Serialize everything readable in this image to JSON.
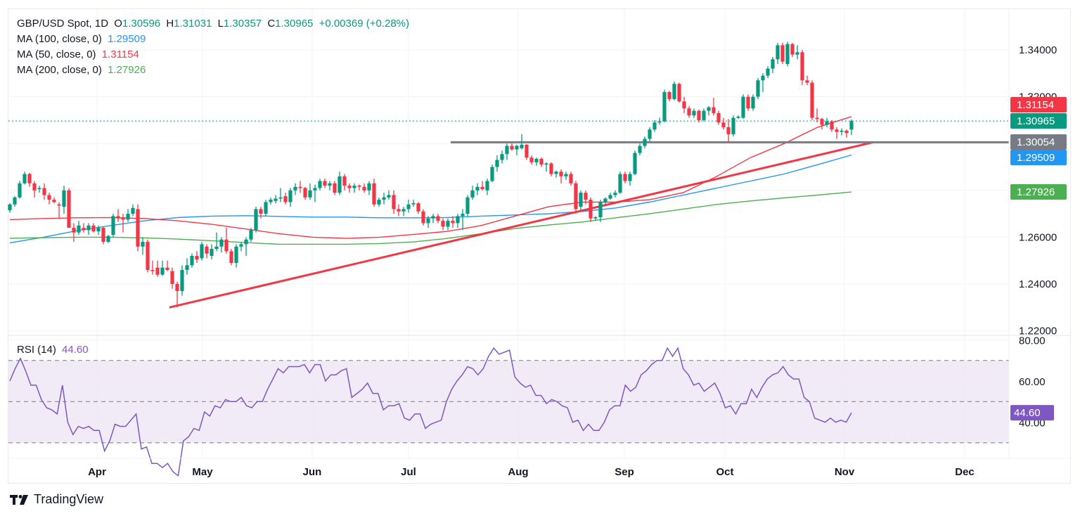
{
  "header": {
    "symbol": "GBP/USD Spot, 1D",
    "open_label": "O",
    "open": "1.30596",
    "high_label": "H",
    "high": "1.31031",
    "low_label": "L",
    "low": "1.30357",
    "close_label": "C",
    "close": "1.30965",
    "change": "+0.00369 (+0.28%)"
  },
  "indicators": [
    {
      "label": "MA (100, close, 0)",
      "value": "1.29509",
      "color": "#2196f3"
    },
    {
      "label": "MA (50, close, 0)",
      "value": "1.31154",
      "color": "#f23645"
    },
    {
      "label": "MA (200, close, 0)",
      "value": "1.27926",
      "color": "#4caf50"
    }
  ],
  "rsi": {
    "label": "RSI (14)",
    "value": "44.60",
    "color": "#7e57c2"
  },
  "price_tags": [
    {
      "name": "ma50-tag",
      "value": "1.31154",
      "color": "#f23645"
    },
    {
      "name": "close-tag",
      "value": "1.30965",
      "color": "#089981"
    },
    {
      "name": "support-tag",
      "value": "1.30054",
      "color": "#787b86"
    },
    {
      "name": "ma100-tag",
      "value": "1.29509",
      "color": "#2196f3"
    },
    {
      "name": "ma200-tag",
      "value": "1.27926",
      "color": "#4caf50"
    }
  ],
  "rsi_tag": {
    "value": "44.60",
    "color": "#7e57c2"
  },
  "brand": "TradingView",
  "colors": {
    "up": "#089981",
    "down": "#f23645",
    "trendline": "#f23645",
    "support": "#787b86",
    "rsi_band": "#ede7f6"
  },
  "chart_data": {
    "type": "candlestick",
    "title": "GBP/USD Spot, 1D",
    "price_axis": {
      "ticks": [
        1.22,
        1.24,
        1.26,
        1.32,
        1.34
      ],
      "tick_labels": [
        "1.22000",
        "1.24000",
        "1.26000",
        "1.32000",
        "1.34000"
      ],
      "range": [
        1.218,
        1.348
      ]
    },
    "time_axis": {
      "labels": [
        "Apr",
        "May",
        "Jun",
        "Jul",
        "Aug",
        "Sep",
        "Oct",
        "Nov",
        "Dec"
      ]
    },
    "candles_ohlc": [
      [
        1.2715,
        1.2745,
        1.2705,
        1.274
      ],
      [
        1.274,
        1.2775,
        1.273,
        1.277
      ],
      [
        1.277,
        1.284,
        1.2765,
        1.283
      ],
      [
        1.283,
        1.288,
        1.2825,
        1.287
      ],
      [
        1.287,
        1.2875,
        1.2815,
        1.283
      ],
      [
        1.283,
        1.284,
        1.277,
        1.28
      ],
      [
        1.2805,
        1.282,
        1.279,
        1.281
      ],
      [
        1.281,
        1.283,
        1.276,
        1.278
      ],
      [
        1.278,
        1.279,
        1.274,
        1.276
      ],
      [
        1.276,
        1.277,
        1.2745,
        1.275
      ],
      [
        1.274,
        1.275,
        1.268,
        1.2735
      ],
      [
        1.273,
        1.282,
        1.27,
        1.28
      ],
      [
        1.28,
        1.281,
        1.266,
        1.264
      ],
      [
        1.264,
        1.266,
        1.258,
        1.262
      ],
      [
        1.262,
        1.267,
        1.261,
        1.265
      ],
      [
        1.264,
        1.266,
        1.262,
        1.263
      ],
      [
        1.263,
        1.266,
        1.261,
        1.265
      ],
      [
        1.265,
        1.266,
        1.262,
        1.2625
      ],
      [
        1.2625,
        1.265,
        1.261,
        1.264
      ],
      [
        1.264,
        1.2645,
        1.257,
        1.258
      ],
      [
        1.258,
        1.261,
        1.2575,
        1.2605
      ],
      [
        1.261,
        1.27,
        1.26,
        1.269
      ],
      [
        1.269,
        1.272,
        1.2665,
        1.268
      ],
      [
        1.2685,
        1.27,
        1.262,
        1.2675
      ],
      [
        1.2675,
        1.272,
        1.2665,
        1.27
      ],
      [
        1.27,
        1.274,
        1.269,
        1.2725
      ],
      [
        1.272,
        1.274,
        1.254,
        1.256
      ],
      [
        1.256,
        1.26,
        1.2525,
        1.258
      ],
      [
        1.258,
        1.259,
        1.245,
        1.246
      ],
      [
        1.246,
        1.25,
        1.244,
        1.2455
      ],
      [
        1.247,
        1.25,
        1.243,
        1.244
      ],
      [
        1.244,
        1.25,
        1.2435,
        1.247
      ],
      [
        1.247,
        1.25,
        1.2455,
        1.246
      ],
      [
        1.2455,
        1.247,
        1.238,
        1.24
      ],
      [
        1.24,
        1.241,
        1.23,
        1.237
      ],
      [
        1.237,
        1.248,
        1.235,
        1.246
      ],
      [
        1.246,
        1.251,
        1.244,
        1.248
      ],
      [
        1.248,
        1.253,
        1.247,
        1.252
      ],
      [
        1.252,
        1.254,
        1.249,
        1.2505
      ],
      [
        1.251,
        1.258,
        1.25,
        1.257
      ],
      [
        1.256,
        1.257,
        1.251,
        1.253
      ],
      [
        1.252,
        1.257,
        1.2505,
        1.255
      ],
      [
        1.255,
        1.262,
        1.254,
        1.256
      ],
      [
        1.256,
        1.26,
        1.2535,
        1.259
      ],
      [
        1.259,
        1.264,
        1.253,
        1.254
      ],
      [
        1.254,
        1.255,
        1.248,
        1.249
      ],
      [
        1.249,
        1.257,
        1.247,
        1.256
      ],
      [
        1.256,
        1.258,
        1.254,
        1.257
      ],
      [
        1.257,
        1.26,
        1.252,
        1.259
      ],
      [
        1.259,
        1.264,
        1.258,
        1.263
      ],
      [
        1.263,
        1.273,
        1.262,
        1.272
      ],
      [
        1.272,
        1.273,
        1.268,
        1.27
      ],
      [
        1.27,
        1.276,
        1.269,
        1.275
      ],
      [
        1.275,
        1.277,
        1.274,
        1.276
      ],
      [
        1.2755,
        1.278,
        1.2745,
        1.2765
      ],
      [
        1.2765,
        1.281,
        1.275,
        1.277
      ],
      [
        1.2775,
        1.279,
        1.274,
        1.275
      ],
      [
        1.275,
        1.281,
        1.273,
        1.28
      ],
      [
        1.28,
        1.283,
        1.278,
        1.2815
      ],
      [
        1.2815,
        1.284,
        1.279,
        1.281
      ],
      [
        1.281,
        1.2815,
        1.276,
        1.277
      ],
      [
        1.277,
        1.283,
        1.276,
        1.28
      ],
      [
        1.28,
        1.2825,
        1.275,
        1.281
      ],
      [
        1.281,
        1.285,
        1.28,
        1.284
      ],
      [
        1.284,
        1.285,
        1.281,
        1.282
      ],
      [
        1.282,
        1.284,
        1.28,
        1.283
      ],
      [
        1.283,
        1.284,
        1.278,
        1.279
      ],
      [
        1.279,
        1.288,
        1.278,
        1.286
      ],
      [
        1.286,
        1.287,
        1.28,
        1.282
      ],
      [
        1.282,
        1.283,
        1.279,
        1.281
      ],
      [
        1.281,
        1.283,
        1.279,
        1.282
      ],
      [
        1.282,
        1.2825,
        1.28,
        1.2815
      ],
      [
        1.2815,
        1.283,
        1.279,
        1.28
      ],
      [
        1.28,
        1.284,
        1.278,
        1.283
      ],
      [
        1.283,
        1.285,
        1.273,
        1.274
      ],
      [
        1.274,
        1.277,
        1.273,
        1.276
      ],
      [
        1.276,
        1.279,
        1.274,
        1.277
      ],
      [
        1.277,
        1.28,
        1.276,
        1.278
      ],
      [
        1.278,
        1.28,
        1.27,
        1.272
      ],
      [
        1.272,
        1.274,
        1.269,
        1.271
      ],
      [
        1.271,
        1.273,
        1.269,
        1.272
      ],
      [
        1.272,
        1.276,
        1.2705,
        1.274
      ],
      [
        1.274,
        1.276,
        1.273,
        1.2745
      ],
      [
        1.2745,
        1.275,
        1.27,
        1.271
      ],
      [
        1.271,
        1.272,
        1.265,
        1.266
      ],
      [
        1.266,
        1.269,
        1.264,
        1.268
      ],
      [
        1.268,
        1.27,
        1.266,
        1.269
      ],
      [
        1.269,
        1.27,
        1.266,
        1.267
      ],
      [
        1.267,
        1.268,
        1.263,
        1.2645
      ],
      [
        1.2645,
        1.268,
        1.263,
        1.267
      ],
      [
        1.267,
        1.269,
        1.264,
        1.266
      ],
      [
        1.266,
        1.27,
        1.264,
        1.269
      ],
      [
        1.269,
        1.272,
        1.263,
        1.27
      ],
      [
        1.27,
        1.278,
        1.269,
        1.277
      ],
      [
        1.277,
        1.282,
        1.276,
        1.28
      ],
      [
        1.28,
        1.283,
        1.278,
        1.2815
      ],
      [
        1.2815,
        1.284,
        1.28,
        1.2805
      ],
      [
        1.28,
        1.285,
        1.278,
        1.284
      ],
      [
        1.284,
        1.291,
        1.2835,
        1.29
      ],
      [
        1.29,
        1.295,
        1.288,
        1.293
      ],
      [
        1.293,
        1.297,
        1.2915,
        1.2955
      ],
      [
        1.2955,
        1.3,
        1.293,
        1.299
      ],
      [
        1.299,
        1.3,
        1.297,
        1.2975
      ],
      [
        1.2975,
        1.2995,
        1.295,
        1.299
      ],
      [
        1.298,
        1.304,
        1.2975,
        1.2995
      ],
      [
        1.2995,
        1.2998,
        1.293,
        1.294
      ],
      [
        1.294,
        1.295,
        1.291,
        1.292
      ],
      [
        1.292,
        1.294,
        1.2905,
        1.2935
      ],
      [
        1.2935,
        1.294,
        1.29,
        1.291
      ],
      [
        1.291,
        1.292,
        1.288,
        1.2915
      ],
      [
        1.2915,
        1.292,
        1.286,
        1.287
      ],
      [
        1.287,
        1.2885,
        1.2855,
        1.288
      ],
      [
        1.288,
        1.289,
        1.283,
        1.286
      ],
      [
        1.286,
        1.288,
        1.2845,
        1.287
      ],
      [
        1.287,
        1.288,
        1.282,
        1.283
      ],
      [
        1.283,
        1.284,
        1.27,
        1.272
      ],
      [
        1.273,
        1.28,
        1.2715,
        1.279
      ],
      [
        1.279,
        1.28,
        1.274,
        1.276
      ],
      [
        1.276,
        1.277,
        1.2665,
        1.268
      ],
      [
        1.268,
        1.269,
        1.267,
        1.2685
      ],
      [
        1.2685,
        1.276,
        1.2665,
        1.275
      ],
      [
        1.275,
        1.277,
        1.274,
        1.2765
      ],
      [
        1.2765,
        1.279,
        1.276,
        1.278
      ],
      [
        1.278,
        1.28,
        1.277,
        1.279
      ],
      [
        1.279,
        1.288,
        1.2785,
        1.287
      ],
      [
        1.287,
        1.288,
        1.283,
        1.284
      ],
      [
        1.284,
        1.288,
        1.282,
        1.287
      ],
      [
        1.287,
        1.297,
        1.2865,
        1.296
      ],
      [
        1.296,
        1.3,
        1.295,
        1.299
      ],
      [
        1.299,
        1.303,
        1.298,
        1.302
      ],
      [
        1.302,
        1.307,
        1.301,
        1.306
      ],
      [
        1.306,
        1.31,
        1.305,
        1.309
      ],
      [
        1.309,
        1.311,
        1.308,
        1.3095
      ],
      [
        1.3095,
        1.323,
        1.309,
        1.322
      ],
      [
        1.322,
        1.3225,
        1.318,
        1.319
      ],
      [
        1.319,
        1.3265,
        1.3185,
        1.3255
      ],
      [
        1.3255,
        1.326,
        1.3175,
        1.318
      ],
      [
        1.318,
        1.32,
        1.313,
        1.315
      ],
      [
        1.315,
        1.316,
        1.311,
        1.312
      ],
      [
        1.312,
        1.315,
        1.311,
        1.314
      ],
      [
        1.314,
        1.3145,
        1.309,
        1.31
      ],
      [
        1.31,
        1.315,
        1.3095,
        1.314
      ],
      [
        1.314,
        1.316,
        1.312,
        1.3155
      ],
      [
        1.3155,
        1.3195,
        1.312,
        1.313
      ],
      [
        1.313,
        1.314,
        1.308,
        1.309
      ],
      [
        1.309,
        1.311,
        1.306,
        1.307
      ],
      [
        1.307,
        1.3105,
        1.3005,
        1.304
      ],
      [
        1.304,
        1.312,
        1.303,
        1.311
      ],
      [
        1.311,
        1.312,
        1.3105,
        1.3115
      ],
      [
        1.311,
        1.321,
        1.3105,
        1.32
      ],
      [
        1.32,
        1.321,
        1.314,
        1.315
      ],
      [
        1.315,
        1.321,
        1.314,
        1.32
      ],
      [
        1.32,
        1.328,
        1.319,
        1.327
      ],
      [
        1.327,
        1.33,
        1.322,
        1.329
      ],
      [
        1.329,
        1.333,
        1.328,
        1.332
      ],
      [
        1.332,
        1.337,
        1.33,
        1.336
      ],
      [
        1.336,
        1.343,
        1.334,
        1.342
      ],
      [
        1.342,
        1.343,
        1.334,
        1.335
      ],
      [
        1.334,
        1.3435,
        1.333,
        1.3425
      ],
      [
        1.3425,
        1.343,
        1.337,
        1.338
      ],
      [
        1.338,
        1.342,
        1.336,
        1.339
      ],
      [
        1.339,
        1.34,
        1.325,
        1.327
      ],
      [
        1.327,
        1.329,
        1.325,
        1.326
      ],
      [
        1.326,
        1.327,
        1.31,
        1.311
      ],
      [
        1.311,
        1.315,
        1.309,
        1.3105
      ],
      [
        1.3105,
        1.311,
        1.306,
        1.308
      ],
      [
        1.308,
        1.311,
        1.307,
        1.3095
      ],
      [
        1.3095,
        1.31,
        1.305,
        1.306
      ],
      [
        1.306,
        1.307,
        1.302,
        1.305
      ],
      [
        1.305,
        1.3065,
        1.3035,
        1.3055
      ],
      [
        1.3055,
        1.306,
        1.3025,
        1.3045
      ],
      [
        1.30596,
        1.31031,
        1.30357,
        1.30965
      ]
    ],
    "moving_averages": [
      {
        "name": "MA (100, close, 0)",
        "color": "#2196f3",
        "last": 1.29509,
        "values": [
          1.2576,
          1.26,
          1.2628,
          1.265,
          1.267,
          1.2684,
          1.269,
          1.2692,
          1.2689,
          1.2686,
          1.2686,
          1.2683,
          1.2683,
          1.2684,
          1.269,
          1.2695,
          1.27,
          1.271,
          1.2725,
          1.275,
          1.278,
          1.281,
          1.284,
          1.287,
          1.291,
          1.2951
        ]
      },
      {
        "name": "MA (50, close, 0)",
        "color": "#f23645",
        "last": 1.31154,
        "values": [
          1.2675,
          1.268,
          1.2683,
          1.2684,
          1.268,
          1.267,
          1.2655,
          1.2635,
          1.2615,
          1.26,
          1.2595,
          1.26,
          1.2612,
          1.2625,
          1.265,
          1.269,
          1.273,
          1.275,
          1.275,
          1.276,
          1.279,
          1.286,
          1.294,
          1.3,
          1.307,
          1.3115
        ]
      },
      {
        "name": "MA (200, close, 0)",
        "color": "#4caf50",
        "last": 1.27926,
        "values": [
          1.2595,
          1.2598,
          1.26,
          1.26,
          1.2597,
          1.2592,
          1.2585,
          1.2577,
          1.257,
          1.257,
          1.257,
          1.2573,
          1.258,
          1.2595,
          1.2615,
          1.2637,
          1.2652,
          1.2665,
          1.2683,
          1.27,
          1.272,
          1.274,
          1.2755,
          1.2768,
          1.278,
          1.2793
        ]
      }
    ],
    "support_line": {
      "value": 1.30054,
      "from": "mid-Jul",
      "to": "early Nov"
    },
    "trendline": {
      "from": {
        "date": "late Apr",
        "price": 1.23
      },
      "to": {
        "date": "early Nov",
        "price": 1.3005
      }
    },
    "rsi_panel": {
      "label": "RSI (14)",
      "ticks": [
        40,
        60,
        80
      ],
      "tick_labels": [
        "40.00",
        "60.00",
        "80.00"
      ],
      "bands": [
        30,
        50,
        70
      ],
      "range": [
        25,
        82
      ],
      "values": [
        60,
        66,
        71,
        65,
        58,
        58,
        51,
        47,
        46,
        44,
        58,
        40,
        34,
        38,
        37,
        38,
        36,
        36,
        26,
        31,
        39,
        38,
        38,
        41,
        44,
        27,
        28,
        20,
        20,
        18,
        20,
        16,
        14,
        31,
        33,
        37,
        36,
        45,
        43,
        48,
        47,
        51,
        50,
        50,
        52,
        48,
        47,
        50,
        50,
        56,
        61,
        66,
        64,
        67,
        67,
        67,
        68,
        64,
        68,
        68,
        60,
        63,
        63,
        65,
        66,
        52,
        54,
        56,
        59,
        54,
        54,
        46,
        48,
        48,
        49,
        42,
        41,
        44,
        44,
        37,
        39,
        40,
        41,
        50,
        56,
        60,
        63,
        67,
        66,
        63,
        66,
        72,
        76,
        73,
        74,
        75,
        62,
        59,
        57,
        58,
        53,
        53,
        49,
        51,
        50,
        48,
        47,
        40,
        41,
        36,
        39,
        36,
        36,
        40,
        46,
        48,
        48,
        58,
        55,
        57,
        63,
        65,
        68,
        70,
        70,
        76,
        72,
        76,
        66,
        63,
        58,
        59,
        55,
        57,
        59,
        54,
        47,
        48,
        44,
        49,
        49,
        56,
        52,
        57,
        61,
        63,
        64,
        67,
        63,
        61,
        61,
        52,
        50,
        42,
        41,
        40,
        42,
        40,
        41,
        40,
        44.6
      ]
    }
  }
}
